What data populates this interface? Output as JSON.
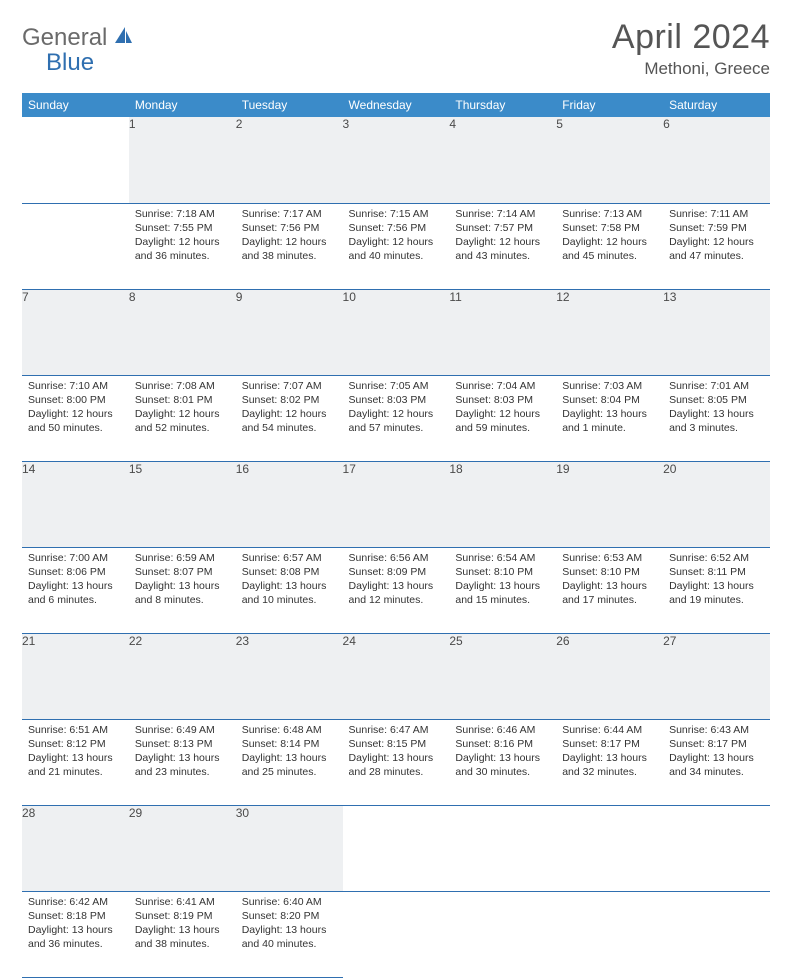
{
  "brand": {
    "part1": "General",
    "part2": "Blue"
  },
  "title": "April 2024",
  "location": "Methoni, Greece",
  "colors": {
    "header_bg": "#3b8bc9",
    "header_text": "#ffffff",
    "daynum_bg": "#eef0f2",
    "border": "#2f6fb0",
    "text": "#333333",
    "brand_gray": "#6a6a6a",
    "brand_blue": "#2f6fb0"
  },
  "day_headers": [
    "Sunday",
    "Monday",
    "Tuesday",
    "Wednesday",
    "Thursday",
    "Friday",
    "Saturday"
  ],
  "weeks": [
    [
      null,
      {
        "n": "1",
        "sr": "7:18 AM",
        "ss": "7:55 PM",
        "dl": "12 hours and 36 minutes."
      },
      {
        "n": "2",
        "sr": "7:17 AM",
        "ss": "7:56 PM",
        "dl": "12 hours and 38 minutes."
      },
      {
        "n": "3",
        "sr": "7:15 AM",
        "ss": "7:56 PM",
        "dl": "12 hours and 40 minutes."
      },
      {
        "n": "4",
        "sr": "7:14 AM",
        "ss": "7:57 PM",
        "dl": "12 hours and 43 minutes."
      },
      {
        "n": "5",
        "sr": "7:13 AM",
        "ss": "7:58 PM",
        "dl": "12 hours and 45 minutes."
      },
      {
        "n": "6",
        "sr": "7:11 AM",
        "ss": "7:59 PM",
        "dl": "12 hours and 47 minutes."
      }
    ],
    [
      {
        "n": "7",
        "sr": "7:10 AM",
        "ss": "8:00 PM",
        "dl": "12 hours and 50 minutes."
      },
      {
        "n": "8",
        "sr": "7:08 AM",
        "ss": "8:01 PM",
        "dl": "12 hours and 52 minutes."
      },
      {
        "n": "9",
        "sr": "7:07 AM",
        "ss": "8:02 PM",
        "dl": "12 hours and 54 minutes."
      },
      {
        "n": "10",
        "sr": "7:05 AM",
        "ss": "8:03 PM",
        "dl": "12 hours and 57 minutes."
      },
      {
        "n": "11",
        "sr": "7:04 AM",
        "ss": "8:03 PM",
        "dl": "12 hours and 59 minutes."
      },
      {
        "n": "12",
        "sr": "7:03 AM",
        "ss": "8:04 PM",
        "dl": "13 hours and 1 minute."
      },
      {
        "n": "13",
        "sr": "7:01 AM",
        "ss": "8:05 PM",
        "dl": "13 hours and 3 minutes."
      }
    ],
    [
      {
        "n": "14",
        "sr": "7:00 AM",
        "ss": "8:06 PM",
        "dl": "13 hours and 6 minutes."
      },
      {
        "n": "15",
        "sr": "6:59 AM",
        "ss": "8:07 PM",
        "dl": "13 hours and 8 minutes."
      },
      {
        "n": "16",
        "sr": "6:57 AM",
        "ss": "8:08 PM",
        "dl": "13 hours and 10 minutes."
      },
      {
        "n": "17",
        "sr": "6:56 AM",
        "ss": "8:09 PM",
        "dl": "13 hours and 12 minutes."
      },
      {
        "n": "18",
        "sr": "6:54 AM",
        "ss": "8:10 PM",
        "dl": "13 hours and 15 minutes."
      },
      {
        "n": "19",
        "sr": "6:53 AM",
        "ss": "8:10 PM",
        "dl": "13 hours and 17 minutes."
      },
      {
        "n": "20",
        "sr": "6:52 AM",
        "ss": "8:11 PM",
        "dl": "13 hours and 19 minutes."
      }
    ],
    [
      {
        "n": "21",
        "sr": "6:51 AM",
        "ss": "8:12 PM",
        "dl": "13 hours and 21 minutes."
      },
      {
        "n": "22",
        "sr": "6:49 AM",
        "ss": "8:13 PM",
        "dl": "13 hours and 23 minutes."
      },
      {
        "n": "23",
        "sr": "6:48 AM",
        "ss": "8:14 PM",
        "dl": "13 hours and 25 minutes."
      },
      {
        "n": "24",
        "sr": "6:47 AM",
        "ss": "8:15 PM",
        "dl": "13 hours and 28 minutes."
      },
      {
        "n": "25",
        "sr": "6:46 AM",
        "ss": "8:16 PM",
        "dl": "13 hours and 30 minutes."
      },
      {
        "n": "26",
        "sr": "6:44 AM",
        "ss": "8:17 PM",
        "dl": "13 hours and 32 minutes."
      },
      {
        "n": "27",
        "sr": "6:43 AM",
        "ss": "8:17 PM",
        "dl": "13 hours and 34 minutes."
      }
    ],
    [
      {
        "n": "28",
        "sr": "6:42 AM",
        "ss": "8:18 PM",
        "dl": "13 hours and 36 minutes."
      },
      {
        "n": "29",
        "sr": "6:41 AM",
        "ss": "8:19 PM",
        "dl": "13 hours and 38 minutes."
      },
      {
        "n": "30",
        "sr": "6:40 AM",
        "ss": "8:20 PM",
        "dl": "13 hours and 40 minutes."
      },
      null,
      null,
      null,
      null
    ]
  ],
  "labels": {
    "sunrise": "Sunrise:",
    "sunset": "Sunset:",
    "daylight": "Daylight:"
  }
}
